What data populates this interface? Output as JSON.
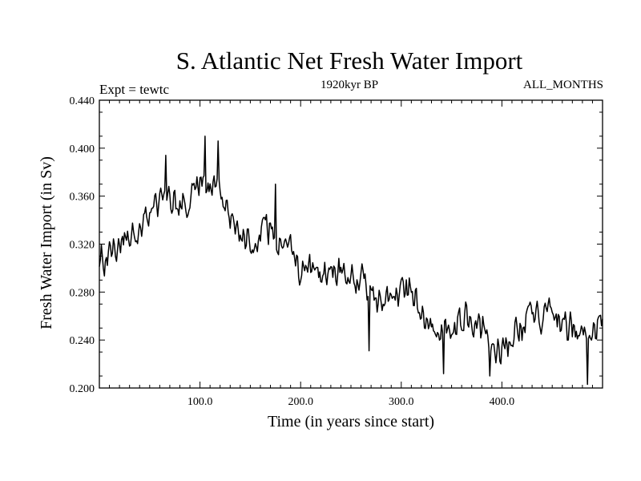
{
  "chart_data": {
    "type": "line",
    "title": "S. Atlantic Net Fresh Water Import",
    "subtitle": "1920kyr BP",
    "experiment_label": "Expt = tewtc",
    "months_label": "ALL_MONTHS",
    "xlabel": "Time (in years since start)",
    "ylabel": "Fresh Water Import (in Sv)",
    "xlim": [
      0,
      500
    ],
    "ylim": [
      0.2,
      0.44
    ],
    "x_ticks": [
      100,
      200,
      300,
      400
    ],
    "x_tick_labels": [
      "100.0",
      "200.0",
      "300.0",
      "400.0"
    ],
    "y_ticks": [
      0.2,
      0.24,
      0.28,
      0.32,
      0.36,
      0.4,
      0.44
    ],
    "y_tick_labels": [
      "0.200",
      "0.240",
      "0.280",
      "0.320",
      "0.360",
      "0.400",
      "0.440"
    ],
    "grid": false,
    "series": [
      {
        "name": "fresh_water_import",
        "color": "#000000",
        "trend_x": [
          0,
          5,
          10,
          20,
          30,
          40,
          50,
          60,
          70,
          80,
          90,
          100,
          110,
          120,
          130,
          140,
          150,
          160,
          170,
          180,
          190,
          200,
          210,
          220,
          230,
          240,
          250,
          260,
          270,
          280,
          290,
          300,
          310,
          320,
          330,
          340,
          350,
          360,
          370,
          380,
          390,
          400,
          410,
          420,
          430,
          440,
          450,
          460,
          470,
          480,
          490,
          500
        ],
        "trend_y": [
          0.31,
          0.305,
          0.315,
          0.32,
          0.325,
          0.33,
          0.345,
          0.355,
          0.36,
          0.35,
          0.36,
          0.375,
          0.37,
          0.36,
          0.345,
          0.33,
          0.325,
          0.33,
          0.335,
          0.32,
          0.315,
          0.3,
          0.295,
          0.29,
          0.3,
          0.3,
          0.295,
          0.29,
          0.275,
          0.27,
          0.275,
          0.28,
          0.28,
          0.265,
          0.255,
          0.245,
          0.25,
          0.255,
          0.26,
          0.245,
          0.235,
          0.235,
          0.245,
          0.255,
          0.265,
          0.26,
          0.27,
          0.255,
          0.25,
          0.245,
          0.25,
          0.25
        ],
        "noise_amplitude": 0.017,
        "peaks": [
          {
            "x": 105,
            "y": 0.41
          },
          {
            "x": 118,
            "y": 0.406
          },
          {
            "x": 175,
            "y": 0.37
          },
          {
            "x": 66,
            "y": 0.394
          }
        ],
        "troughs": [
          {
            "x": 268,
            "y": 0.231
          },
          {
            "x": 342,
            "y": 0.212
          },
          {
            "x": 388,
            "y": 0.21
          },
          {
            "x": 485,
            "y": 0.203
          }
        ]
      }
    ]
  }
}
